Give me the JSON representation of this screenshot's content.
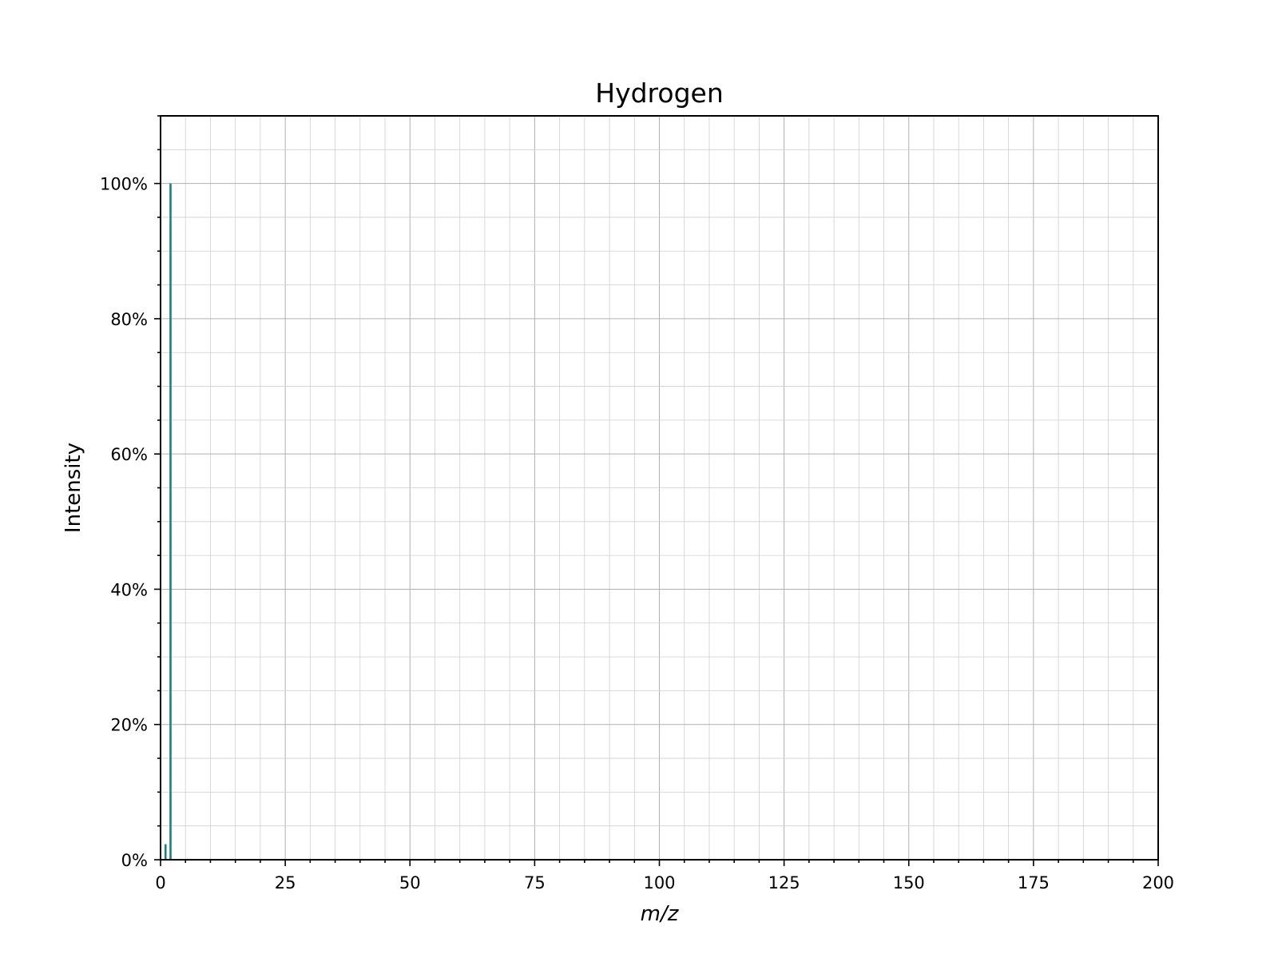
{
  "chart_data": {
    "type": "bar",
    "title": "Hydrogen",
    "xlabel": "m/z",
    "ylabel": "Intensity",
    "xlim": [
      0,
      200
    ],
    "ylim": [
      0,
      110
    ],
    "x_ticks": [
      0,
      25,
      50,
      75,
      100,
      125,
      150,
      175,
      200
    ],
    "x_tick_labels": [
      "0",
      "25",
      "50",
      "75",
      "100",
      "125",
      "150",
      "175",
      "200"
    ],
    "x_minor_step": 5,
    "y_ticks": [
      0,
      20,
      40,
      60,
      80,
      100
    ],
    "y_tick_labels": [
      "0%",
      "20%",
      "40%",
      "60%",
      "80%",
      "100%"
    ],
    "y_minor_step": 5,
    "grid": true,
    "bar_color": "#1a8080",
    "peaks": [
      {
        "mz": 1,
        "intensity": 2.3
      },
      {
        "mz": 2,
        "intensity": 100
      }
    ]
  }
}
